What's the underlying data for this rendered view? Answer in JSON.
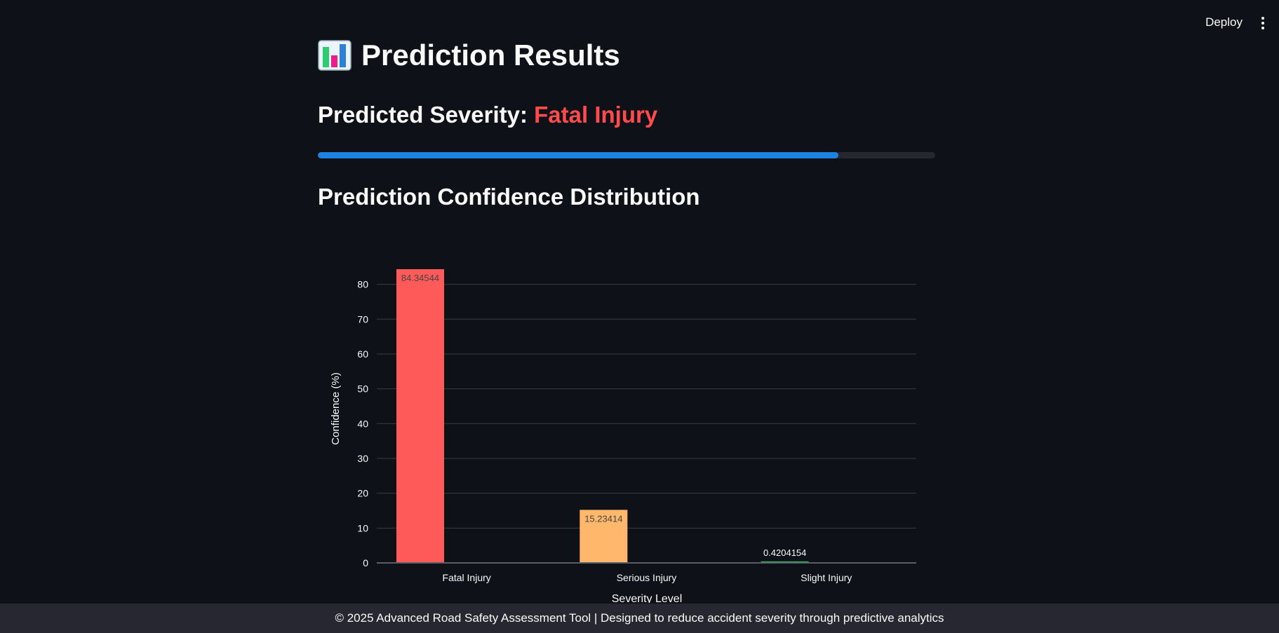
{
  "header": {
    "deploy_label": "Deploy",
    "menu_icon": "more-vertical-icon"
  },
  "main": {
    "title": "Prediction Results",
    "title_icon": "bar-chart-icon",
    "severity_label": "Predicted Severity:",
    "severity_value": "Fatal Injury",
    "severity_color": "#ff4b4b",
    "progress_fraction": 0.8435,
    "progress_color": "#1c83e1",
    "section_title": "Prediction Confidence Distribution"
  },
  "chart_data": {
    "type": "bar",
    "categories": [
      "Fatal Injury",
      "Serious Injury",
      "Slight Injury"
    ],
    "values": [
      84.34544,
      15.23414,
      0.4204154
    ],
    "value_labels": [
      "84.34544",
      "15.23414",
      "0.4204154"
    ],
    "colors": [
      "#ff5a5a",
      "#ffb86b",
      "#2ecc71"
    ],
    "xlabel": "Severity Level",
    "ylabel": "Confidence (%)",
    "ylim": [
      0,
      84.34544
    ],
    "yticks": [
      0,
      10,
      20,
      30,
      40,
      50,
      60,
      70,
      80
    ],
    "grid": true
  },
  "footer": {
    "text": "© 2025 Advanced Road Safety Assessment Tool | Designed to reduce accident severity through predictive analytics"
  }
}
